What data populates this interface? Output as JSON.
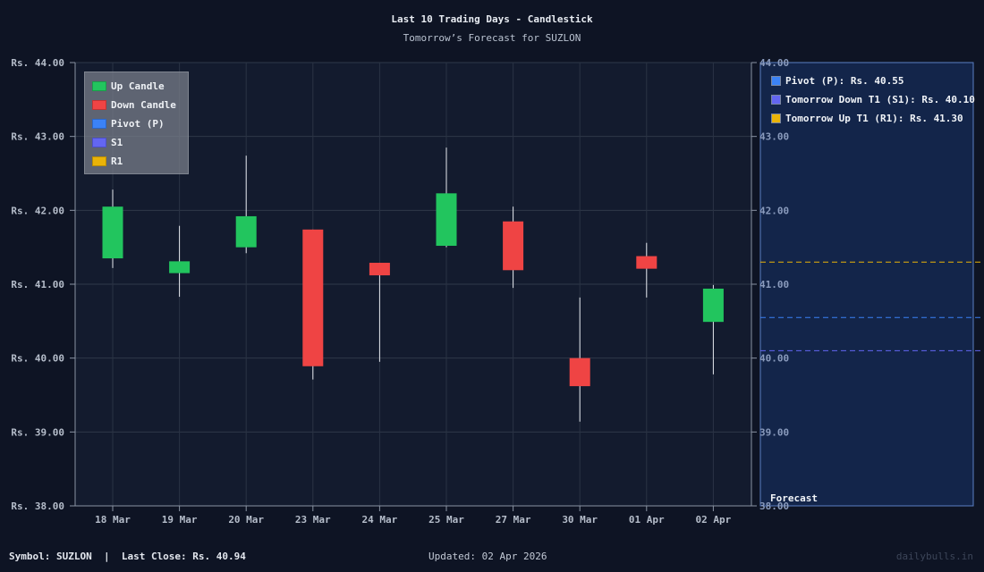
{
  "header": {
    "title": "Last 10 Trading Days - Candlestick",
    "subtitle": "Tomorrow’s Forecast for SUZLON"
  },
  "legend": {
    "items": [
      {
        "label": "Up Candle",
        "color": "#22c55e"
      },
      {
        "label": "Down Candle",
        "color": "#ef4444"
      },
      {
        "label": "Pivot (P)",
        "color": "#3b82f6"
      },
      {
        "label": "S1",
        "color": "#6366f1"
      },
      {
        "label": "R1",
        "color": "#eab308"
      }
    ]
  },
  "forecast": {
    "title": "Forecast",
    "items": [
      {
        "label": "Pivot (P): Rs. 40.55",
        "color": "#3b82f6"
      },
      {
        "label": "Tomorrow Down T1 (S1): Rs. 40.10",
        "color": "#6366f1"
      },
      {
        "label": "Tomorrow Up T1 (R1): Rs. 41.30",
        "color": "#eab308"
      }
    ]
  },
  "footer": {
    "left": "Symbol: SUZLON  |  Last Close: Rs. 40.94",
    "middle": "Updated: 02 Apr 2026",
    "right": "dailybulls.in"
  },
  "colors": {
    "up": "#22c55e",
    "down": "#ef4444",
    "pivot": "#3b82f6",
    "s1": "#6366f1",
    "r1": "#eab308"
  },
  "chart_data": {
    "type": "candlestick",
    "title": "Last 10 Trading Days - Candlestick",
    "subtitle": "Tomorrow’s Forecast for SUZLON",
    "xlabel": "",
    "ylabel": "",
    "ylim": [
      38,
      44
    ],
    "y_ticks_left": [
      "Rs. 44.00",
      "Rs. 43.00",
      "Rs. 42.00",
      "Rs. 41.00",
      "Rs. 40.00",
      "Rs. 39.00",
      "Rs. 38.00"
    ],
    "y_ticks_right": [
      "44.00",
      "43.00",
      "42.00",
      "41.00",
      "40.00",
      "39.00",
      "38.00"
    ],
    "y_tick_values": [
      44,
      43,
      42,
      41,
      40,
      39,
      38
    ],
    "grid": true,
    "categories": [
      "18 Mar",
      "19 Mar",
      "20 Mar",
      "23 Mar",
      "24 Mar",
      "25 Mar",
      "27 Mar",
      "30 Mar",
      "01 Apr",
      "02 Apr"
    ],
    "open": [
      41.35,
      41.15,
      41.5,
      41.74,
      41.29,
      41.52,
      41.85,
      40.0,
      41.38,
      40.49
    ],
    "high": [
      42.28,
      41.79,
      42.74,
      41.74,
      41.29,
      42.85,
      42.05,
      40.82,
      41.56,
      40.99
    ],
    "low": [
      41.22,
      40.83,
      41.42,
      39.71,
      39.95,
      41.5,
      40.95,
      39.14,
      40.82,
      39.78
    ],
    "close": [
      42.05,
      41.31,
      41.92,
      39.89,
      41.12,
      42.23,
      41.19,
      39.62,
      41.21,
      40.94
    ],
    "forecast_levels": [
      {
        "name": "Pivot (P)",
        "value": 40.55
      },
      {
        "name": "S1",
        "value": 40.1
      },
      {
        "name": "R1",
        "value": 41.3
      }
    ],
    "legend_position": "upper left"
  }
}
